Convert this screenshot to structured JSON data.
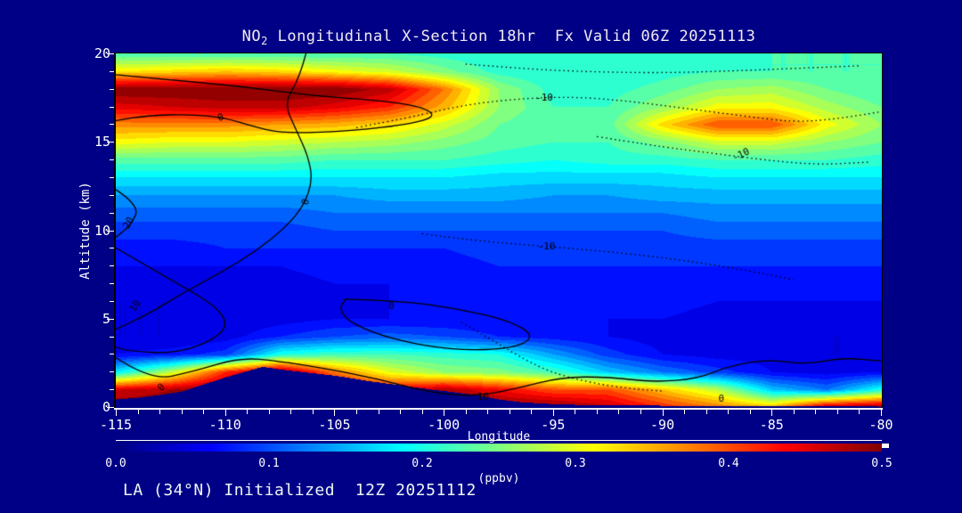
{
  "title": {
    "prefix": "NO",
    "sub": "2",
    "rest": " Longitudinal X-Section 18hr  Fx Valid 06Z 20251113"
  },
  "footer": "LA (34°N) Initialized  12Z 20251112",
  "colors": {
    "background": "#000087",
    "title_text": "#f2ecee",
    "footer_text": "#edf6f3",
    "axis_text": "#ffffff",
    "contour_line": "#000000",
    "colormap_low": "#000080",
    "colormap_high": "#800000"
  },
  "chart_data": {
    "type": "heatmap",
    "title": "NO2 Longitudinal X-Section 18hr  Fx Valid 06Z 20251113",
    "xlabel": "Longitude",
    "ylabel": "Altitude (km)",
    "colorbar_label": "(ppbv)",
    "colorbar_ticks": [
      "0.0",
      "0.1",
      "0.2",
      "0.3",
      "0.4",
      "0.5"
    ],
    "x_tick_labels": [
      "-115",
      "-110",
      "-105",
      "-100",
      "-95",
      "-90",
      "-85",
      "-80"
    ],
    "x_ticks": [
      -115,
      -110,
      -105,
      -100,
      -95,
      -90,
      -85,
      -80
    ],
    "x_minor_step": 1,
    "y_tick_labels": [
      "0",
      "5",
      "10",
      "15",
      "20"
    ],
    "y_ticks": [
      0,
      5,
      10,
      15,
      20
    ],
    "y_minor_step": 1,
    "xlim": [
      -115,
      -80
    ],
    "ylim": [
      0,
      20
    ],
    "clim": [
      0,
      0.5
    ],
    "colormap": "jet",
    "lons": [
      -115,
      -112.5,
      -110,
      -107.5,
      -105,
      -102.5,
      -100,
      -97.5,
      -95,
      -92.5,
      -90,
      -87.5,
      -85,
      -82.5,
      -80
    ],
    "alts": [
      0,
      1,
      2,
      3,
      4,
      5,
      6,
      7,
      8,
      9,
      10,
      11,
      12,
      13,
      14,
      15,
      16,
      17,
      18,
      19,
      20
    ],
    "values_ppbv": [
      [
        0.5,
        0.5,
        0.5,
        0.5,
        0.5,
        0.5,
        0.5,
        0.5,
        0.5,
        0.47,
        0.42,
        0.38,
        0.35,
        0.48,
        0.5
      ],
      [
        0.46,
        0.48,
        0.5,
        0.5,
        0.46,
        0.44,
        0.48,
        0.44,
        0.4,
        0.4,
        0.34,
        0.28,
        0.16,
        0.12,
        0.2
      ],
      [
        0.18,
        0.28,
        0.42,
        0.5,
        0.38,
        0.3,
        0.26,
        0.25,
        0.22,
        0.16,
        0.12,
        0.09,
        0.06,
        0.05,
        0.06
      ],
      [
        0.06,
        0.07,
        0.09,
        0.2,
        0.22,
        0.22,
        0.21,
        0.2,
        0.14,
        0.09,
        0.06,
        0.05,
        0.05,
        0.04,
        0.04
      ],
      [
        0.04,
        0.04,
        0.05,
        0.08,
        0.1,
        0.11,
        0.1,
        0.08,
        0.07,
        0.06,
        0.05,
        0.05,
        0.05,
        0.04,
        0.04
      ],
      [
        0.04,
        0.04,
        0.04,
        0.05,
        0.06,
        0.06,
        0.06,
        0.06,
        0.06,
        0.06,
        0.06,
        0.05,
        0.05,
        0.05,
        0.05
      ],
      [
        0.04,
        0.04,
        0.04,
        0.05,
        0.05,
        0.06,
        0.06,
        0.06,
        0.06,
        0.07,
        0.07,
        0.06,
        0.06,
        0.06,
        0.06
      ],
      [
        0.05,
        0.05,
        0.05,
        0.05,
        0.06,
        0.06,
        0.06,
        0.07,
        0.07,
        0.07,
        0.07,
        0.07,
        0.07,
        0.07,
        0.07
      ],
      [
        0.06,
        0.06,
        0.06,
        0.06,
        0.07,
        0.07,
        0.07,
        0.08,
        0.08,
        0.08,
        0.08,
        0.08,
        0.08,
        0.08,
        0.08
      ],
      [
        0.07,
        0.07,
        0.08,
        0.08,
        0.08,
        0.08,
        0.08,
        0.09,
        0.09,
        0.09,
        0.09,
        0.09,
        0.09,
        0.09,
        0.09
      ],
      [
        0.09,
        0.09,
        0.09,
        0.09,
        0.1,
        0.1,
        0.1,
        0.1,
        0.1,
        0.1,
        0.1,
        0.11,
        0.11,
        0.11,
        0.11
      ],
      [
        0.11,
        0.11,
        0.11,
        0.11,
        0.12,
        0.12,
        0.12,
        0.12,
        0.12,
        0.12,
        0.12,
        0.13,
        0.13,
        0.13,
        0.13
      ],
      [
        0.14,
        0.14,
        0.14,
        0.14,
        0.14,
        0.15,
        0.15,
        0.15,
        0.14,
        0.14,
        0.15,
        0.15,
        0.15,
        0.15,
        0.15
      ],
      [
        0.18,
        0.18,
        0.18,
        0.18,
        0.18,
        0.18,
        0.18,
        0.17,
        0.17,
        0.17,
        0.17,
        0.18,
        0.18,
        0.18,
        0.18
      ],
      [
        0.23,
        0.23,
        0.23,
        0.23,
        0.22,
        0.22,
        0.22,
        0.21,
        0.2,
        0.21,
        0.21,
        0.22,
        0.22,
        0.22,
        0.21
      ],
      [
        0.31,
        0.3,
        0.3,
        0.29,
        0.28,
        0.27,
        0.25,
        0.23,
        0.22,
        0.22,
        0.25,
        0.29,
        0.29,
        0.26,
        0.24
      ],
      [
        0.37,
        0.37,
        0.37,
        0.36,
        0.35,
        0.33,
        0.29,
        0.24,
        0.22,
        0.23,
        0.33,
        0.4,
        0.4,
        0.31,
        0.26
      ],
      [
        0.45,
        0.46,
        0.47,
        0.47,
        0.45,
        0.42,
        0.35,
        0.26,
        0.22,
        0.22,
        0.26,
        0.31,
        0.31,
        0.27,
        0.24
      ],
      [
        0.5,
        0.5,
        0.5,
        0.5,
        0.5,
        0.47,
        0.38,
        0.26,
        0.21,
        0.21,
        0.23,
        0.26,
        0.27,
        0.24,
        0.22
      ],
      [
        0.32,
        0.33,
        0.34,
        0.33,
        0.31,
        0.29,
        0.25,
        0.21,
        0.2,
        0.2,
        0.21,
        0.22,
        0.22,
        0.22,
        0.22
      ],
      [
        0.22,
        0.22,
        0.22,
        0.22,
        0.22,
        0.22,
        0.21,
        0.2,
        0.2,
        0.2,
        0.2,
        0.21,
        0.22,
        0.22,
        0.22
      ]
    ],
    "terrain_km": {
      "lons": [
        -115,
        -114,
        -113,
        -112,
        -111,
        -110,
        -109,
        -108.3,
        -107.5,
        -106.5,
        -105,
        -103.5,
        -102,
        -100.5,
        -99.5,
        -98.5,
        -97.5,
        -96.5,
        -95,
        -93,
        -90,
        -87,
        -84,
        -80
      ],
      "heights": [
        0.45,
        0.55,
        0.7,
        0.9,
        1.3,
        1.7,
        2.05,
        2.3,
        2.15,
        2.0,
        1.8,
        1.5,
        1.25,
        1.0,
        0.85,
        0.7,
        0.45,
        0.3,
        0.18,
        0.12,
        0.1,
        0.08,
        0.06,
        0.05
      ]
    },
    "contours": [
      {
        "style": "solid",
        "pts": [
          [
            -115,
            18.8
          ],
          [
            -112,
            18.45
          ],
          [
            -109,
            18.1
          ],
          [
            -106,
            17.6
          ],
          [
            -103,
            17.35
          ],
          [
            -101,
            17.0
          ],
          [
            -100.3,
            16.4
          ],
          [
            -102,
            15.9
          ],
          [
            -105,
            15.55
          ],
          [
            -107.5,
            15.5
          ],
          [
            -108.8,
            15.9
          ],
          [
            -110,
            16.35
          ],
          [
            -111.5,
            16.55
          ],
          [
            -113.5,
            16.5
          ],
          [
            -115,
            16.2
          ]
        ]
      },
      {
        "style": "solid",
        "pts": [
          [
            -106.3,
            20
          ],
          [
            -106.6,
            18.6
          ],
          [
            -107.3,
            17.2
          ],
          [
            -106.8,
            15.8
          ],
          [
            -106.2,
            14.2
          ],
          [
            -106.0,
            12.8
          ],
          [
            -106.4,
            11.4
          ],
          [
            -107.2,
            10.2
          ],
          [
            -108.6,
            8.8
          ],
          [
            -110.2,
            7.6
          ],
          [
            -112.0,
            6.4
          ],
          [
            -113.6,
            5.2
          ],
          [
            -115,
            4.4
          ]
        ]
      },
      {
        "style": "solid",
        "pts": [
          [
            -115,
            12.3
          ],
          [
            -113.9,
            11.4
          ],
          [
            -114.3,
            10.3
          ],
          [
            -115,
            9.6
          ]
        ]
      },
      {
        "style": "solid",
        "pts": [
          [
            -115,
            9.0
          ],
          [
            -112.5,
            7.2
          ],
          [
            -110.5,
            5.8
          ],
          [
            -109.8,
            4.6
          ],
          [
            -110.8,
            3.6
          ],
          [
            -112.5,
            3.0
          ],
          [
            -114.5,
            3.2
          ],
          [
            -115,
            3.4
          ]
        ]
      },
      {
        "style": "solid",
        "pts": [
          [
            -104.5,
            6.1
          ],
          [
            -102,
            6.0
          ],
          [
            -99.5,
            5.6
          ],
          [
            -97,
            4.9
          ],
          [
            -95.8,
            4.0
          ],
          [
            -96.8,
            3.3
          ],
          [
            -99.5,
            3.2
          ],
          [
            -102.3,
            3.8
          ],
          [
            -104.2,
            4.7
          ],
          [
            -104.8,
            5.5
          ],
          [
            -104.5,
            6.1
          ]
        ]
      },
      {
        "style": "solid",
        "pts": [
          [
            -115,
            2.8
          ],
          [
            -113.4,
            1.5
          ],
          [
            -111.5,
            2.0
          ],
          [
            -109.3,
            2.8
          ],
          [
            -107.6,
            2.6
          ],
          [
            -105.5,
            2.2
          ],
          [
            -103,
            1.6
          ],
          [
            -100.6,
            0.8
          ],
          [
            -98.6,
            0.6
          ],
          [
            -96.8,
            1.0
          ],
          [
            -94.6,
            1.7
          ],
          [
            -92.4,
            1.7
          ],
          [
            -90.4,
            1.4
          ],
          [
            -88.4,
            1.6
          ],
          [
            -87.0,
            2.3
          ],
          [
            -85.2,
            2.7
          ],
          [
            -83.4,
            2.4
          ],
          [
            -81.8,
            2.8
          ],
          [
            -80,
            2.6
          ]
        ]
      },
      {
        "style": "dotted",
        "pts": [
          [
            -104,
            15.8
          ],
          [
            -101.5,
            16.4
          ],
          [
            -99,
            17.1
          ],
          [
            -96.5,
            17.45
          ],
          [
            -94,
            17.55
          ],
          [
            -91.5,
            17.3
          ],
          [
            -89,
            16.9
          ],
          [
            -86.5,
            16.5
          ],
          [
            -84,
            16.1
          ],
          [
            -82,
            16.3
          ],
          [
            -80,
            16.7
          ]
        ]
      },
      {
        "style": "dotted",
        "pts": [
          [
            -93,
            15.3
          ],
          [
            -90.5,
            14.8
          ],
          [
            -88,
            14.4
          ],
          [
            -85.5,
            14.0
          ],
          [
            -83,
            13.7
          ],
          [
            -80.5,
            13.85
          ]
        ]
      },
      {
        "style": "dotted",
        "pts": [
          [
            -101,
            9.8
          ],
          [
            -98.5,
            9.4
          ],
          [
            -96,
            9.15
          ],
          [
            -93.5,
            8.9
          ],
          [
            -91,
            8.6
          ],
          [
            -88.5,
            8.2
          ],
          [
            -86,
            7.7
          ],
          [
            -84,
            7.2
          ]
        ]
      },
      {
        "style": "dotted",
        "pts": [
          [
            -99.2,
            4.8
          ],
          [
            -97.8,
            3.8
          ],
          [
            -96.6,
            2.9
          ],
          [
            -95.2,
            2.0
          ],
          [
            -93.4,
            1.4
          ],
          [
            -91.6,
            1.05
          ],
          [
            -90,
            0.9
          ]
        ]
      },
      {
        "style": "dotted",
        "pts": [
          [
            -99,
            19.4
          ],
          [
            -96,
            19.1
          ],
          [
            -93,
            18.95
          ],
          [
            -90,
            18.9
          ],
          [
            -87,
            19.0
          ],
          [
            -84,
            19.15
          ],
          [
            -81,
            19.3
          ]
        ]
      }
    ],
    "contour_labels": [
      {
        "text": "0",
        "lon": -110.2,
        "alt": 16.35,
        "rot": -20
      },
      {
        "text": "0",
        "lon": -106.3,
        "alt": 11.6,
        "rot": -75
      },
      {
        "text": "20",
        "lon": -114.4,
        "alt": 10.4,
        "rot": -60
      },
      {
        "text": "10",
        "lon": -114.1,
        "alt": 5.7,
        "rot": -60
      },
      {
        "text": "0",
        "lon": -102.4,
        "alt": 5.7,
        "rot": 0
      },
      {
        "text": "0",
        "lon": -112.9,
        "alt": 1.1,
        "rot": -40
      },
      {
        "text": "10",
        "lon": -98.2,
        "alt": 0.55,
        "rot": 0
      },
      {
        "text": "0",
        "lon": -87.3,
        "alt": 0.45,
        "rot": 0
      },
      {
        "text": "-10",
        "lon": -95.4,
        "alt": 17.45,
        "rot": 0
      },
      {
        "text": "-10",
        "lon": -86.4,
        "alt": 14.25,
        "rot": -25
      },
      {
        "text": "-10",
        "lon": -95.3,
        "alt": 9.05,
        "rot": 0
      }
    ]
  }
}
